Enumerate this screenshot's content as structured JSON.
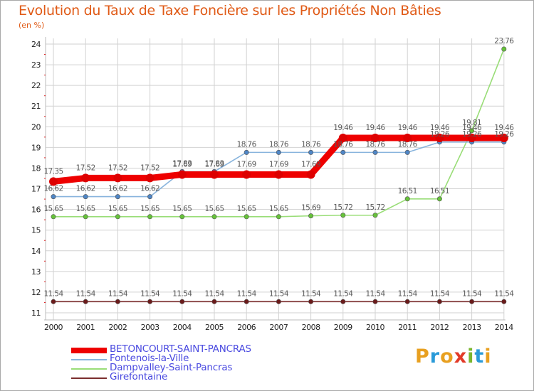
{
  "title": "Evolution du Taux de Taxe Foncière sur les Propriétés Non Bâties",
  "unit": "(en %)",
  "logo": {
    "text": "Proxiti",
    "letter_colors": [
      "#e8a020",
      "#2a9ad8",
      "#e8a020",
      "#e23a28",
      "#7ab62e",
      "#2a9ad8",
      "#e8a020"
    ]
  },
  "chart_data": {
    "type": "line",
    "title": "Evolution du Taux de Taxe Foncière sur les Propriétés Non Bâties",
    "ylabel": "(en %)",
    "xlabel": "",
    "ylim": [
      11,
      24
    ],
    "y_ticks": [
      "11",
      "12",
      "13",
      "14",
      "15",
      "16",
      "17",
      "18",
      "19",
      "20",
      "21",
      "22",
      "23",
      "24"
    ],
    "categories": [
      "2000",
      "2001",
      "2002",
      "2003",
      "2004",
      "2005",
      "2006",
      "2007",
      "2008",
      "2009",
      "2010",
      "2011",
      "2012",
      "2013",
      "2014"
    ],
    "grid": true,
    "legend_position": "bottom-left",
    "series": [
      {
        "name": "Girefontaine",
        "color": "#7b2e2e",
        "marker": "#6a1a1a",
        "width": "thin",
        "values": [
          11.54,
          11.54,
          11.54,
          11.54,
          11.54,
          11.54,
          11.54,
          11.54,
          11.54,
          11.54,
          11.54,
          11.54,
          11.54,
          11.54,
          11.54
        ],
        "labels": [
          "11.54",
          "11.54",
          "11.54",
          "11.54",
          "11.54",
          "11.54",
          "11.54",
          "11.54",
          "11.54",
          "11.54",
          "11.54",
          "11.54",
          "11.54",
          "11.54",
          "11.54"
        ]
      },
      {
        "name": "Dampvalley-Saint-Pancras",
        "color": "#99dd77",
        "marker": "#66c23a",
        "width": "thin",
        "values": [
          15.65,
          15.65,
          15.65,
          15.65,
          15.65,
          15.65,
          15.65,
          15.65,
          15.69,
          15.72,
          15.72,
          16.51,
          16.51,
          19.81,
          23.76
        ],
        "labels": [
          "15.65",
          "15.65",
          "15.65",
          "15.65",
          "15.65",
          "15.65",
          "15.65",
          "15.65",
          "15.69",
          "15.72",
          "15.72",
          "16.51",
          "16.51",
          "19.81",
          "23.76"
        ]
      },
      {
        "name": "Fontenois-la-Ville",
        "color": "#88b4dd",
        "marker": "#4f86c6",
        "width": "thin",
        "values": [
          16.62,
          16.62,
          16.62,
          16.62,
          17.83,
          17.83,
          18.76,
          18.76,
          18.76,
          18.76,
          18.76,
          18.76,
          19.26,
          19.26,
          19.26
        ],
        "labels": [
          "16.62",
          "16.62",
          "16.62",
          "16.62",
          "17.83",
          "17.83",
          "18.76",
          "18.76",
          "18.76",
          "18.76",
          "18.76",
          "18.76",
          "19.26",
          "19.26",
          "19.26"
        ]
      },
      {
        "name": "BETONCOURT-SAINT-PANCRAS",
        "color": "#ee0000",
        "marker": "#dd0000",
        "width": "thick",
        "values": [
          17.35,
          17.52,
          17.52,
          17.52,
          17.69,
          17.69,
          17.69,
          17.69,
          17.69,
          19.46,
          19.46,
          19.46,
          19.46,
          19.46,
          19.46
        ],
        "labels": [
          "17.35",
          "17.52",
          "17.52",
          "17.52",
          "17.69",
          "17.69",
          "17.69",
          "17.69",
          "17.69",
          "19.46",
          "19.46",
          "19.46",
          "19.46",
          "19.46",
          "19.46"
        ]
      }
    ],
    "legend_order": [
      "BETONCOURT-SAINT-PANCRAS",
      "Fontenois-la-Ville",
      "Dampvalley-Saint-Pancras",
      "Girefontaine"
    ]
  }
}
